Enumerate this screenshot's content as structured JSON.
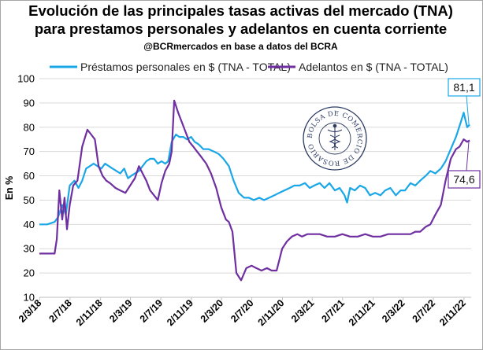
{
  "chart_data": {
    "type": "line",
    "title": "Evolución de las principales tasas activas del mercado (TNA)",
    "title_line2": "para prestamos personales y adelantos en cuenta corriente",
    "subtitle": "@BCRmercados en base a datos del BCRA",
    "ylabel": "En %",
    "ylim": [
      10,
      100
    ],
    "yticks": [
      "10",
      "20",
      "30",
      "40",
      "50",
      "60",
      "70",
      "80",
      "90",
      "100"
    ],
    "xlim": [
      "2018-03-01",
      "2022-12-01"
    ],
    "xticks": [
      {
        "date": "2018-03-02",
        "label": "2/3/18"
      },
      {
        "date": "2018-07-02",
        "label": "2/7/18"
      },
      {
        "date": "2018-11-02",
        "label": "2/11/18"
      },
      {
        "date": "2019-03-02",
        "label": "2/3/19"
      },
      {
        "date": "2019-07-02",
        "label": "2/7/19"
      },
      {
        "date": "2019-11-02",
        "label": "2/11/19"
      },
      {
        "date": "2020-03-02",
        "label": "2/3/20"
      },
      {
        "date": "2020-07-02",
        "label": "2/7/20"
      },
      {
        "date": "2020-11-02",
        "label": "2/11/20"
      },
      {
        "date": "2021-03-02",
        "label": "2/3/21"
      },
      {
        "date": "2021-07-02",
        "label": "2/7/21"
      },
      {
        "date": "2021-11-02",
        "label": "2/11/21"
      },
      {
        "date": "2022-03-02",
        "label": "2/3/22"
      },
      {
        "date": "2022-07-02",
        "label": "2/7/22"
      },
      {
        "date": "2022-11-02",
        "label": "2/11/22"
      }
    ],
    "grid": true,
    "legend": "top",
    "series": [
      {
        "name": "Préstamos personales en $ (TNA - TOTAL)",
        "color": "#1aa7e8",
        "x": [
          "2018-03-01",
          "2018-04-01",
          "2018-05-01",
          "2018-05-15",
          "2018-06-01",
          "2018-06-15",
          "2018-07-01",
          "2018-07-20",
          "2018-08-05",
          "2018-08-20",
          "2018-09-05",
          "2018-09-20",
          "2018-10-05",
          "2018-10-20",
          "2018-11-05",
          "2018-11-20",
          "2018-12-05",
          "2018-12-20",
          "2019-01-05",
          "2019-01-20",
          "2019-02-05",
          "2019-02-20",
          "2019-03-05",
          "2019-03-20",
          "2019-04-05",
          "2019-04-20",
          "2019-05-05",
          "2019-05-20",
          "2019-06-05",
          "2019-06-20",
          "2019-07-05",
          "2019-07-20",
          "2019-08-01",
          "2019-08-15",
          "2019-09-01",
          "2019-09-15",
          "2019-10-01",
          "2019-10-15",
          "2019-11-01",
          "2019-11-15",
          "2019-12-01",
          "2019-12-20",
          "2020-01-10",
          "2020-02-01",
          "2020-02-20",
          "2020-03-10",
          "2020-04-01",
          "2020-04-20",
          "2020-05-10",
          "2020-06-01",
          "2020-06-20",
          "2020-07-10",
          "2020-08-01",
          "2020-08-20",
          "2020-09-10",
          "2020-10-01",
          "2020-10-20",
          "2020-11-10",
          "2020-12-01",
          "2020-12-20",
          "2021-01-10",
          "2021-02-01",
          "2021-02-20",
          "2021-03-10",
          "2021-04-01",
          "2021-04-20",
          "2021-05-10",
          "2021-06-01",
          "2021-06-20",
          "2021-07-10",
          "2021-07-20",
          "2021-08-01",
          "2021-08-20",
          "2021-09-10",
          "2021-10-01",
          "2021-10-20",
          "2021-11-10",
          "2021-12-01",
          "2021-12-20",
          "2022-01-10",
          "2022-02-01",
          "2022-02-20",
          "2022-03-10",
          "2022-04-01",
          "2022-04-20",
          "2022-05-10",
          "2022-06-01",
          "2022-06-20",
          "2022-07-10",
          "2022-08-01",
          "2022-08-20",
          "2022-09-10",
          "2022-10-01",
          "2022-10-20",
          "2022-11-01",
          "2022-11-15",
          "2022-11-25"
        ],
        "y": [
          40,
          40,
          41,
          43,
          48,
          44,
          56,
          58,
          55,
          58,
          63,
          64,
          65,
          64,
          63,
          65,
          64,
          63,
          62,
          61,
          63,
          59,
          60,
          61,
          62,
          64,
          66,
          67,
          67,
          65,
          66,
          65,
          66,
          74,
          77,
          76,
          76,
          75,
          76,
          74,
          73,
          71,
          71,
          70,
          69,
          67,
          64,
          58,
          53,
          51,
          51,
          50,
          51,
          50,
          51,
          52,
          53,
          54,
          55,
          56,
          56,
          57,
          55,
          56,
          57,
          55,
          57,
          54,
          55,
          52,
          49,
          55,
          54,
          56,
          55,
          52,
          53,
          52,
          54,
          55,
          52,
          54,
          54,
          57,
          56,
          58,
          60,
          62,
          61,
          63,
          66,
          71,
          76,
          82,
          86,
          80,
          81.1
        ]
      },
      {
        "name": "Adelantos en $ (TNA - TOTAL)",
        "color": "#6f2fa0",
        "x": [
          "2018-03-01",
          "2018-04-01",
          "2018-05-01",
          "2018-05-10",
          "2018-05-20",
          "2018-06-01",
          "2018-06-10",
          "2018-06-20",
          "2018-07-01",
          "2018-07-15",
          "2018-08-01",
          "2018-08-20",
          "2018-09-10",
          "2018-09-25",
          "2018-10-10",
          "2018-10-25",
          "2018-11-10",
          "2018-11-25",
          "2018-12-10",
          "2019-01-01",
          "2019-01-20",
          "2019-02-10",
          "2019-03-01",
          "2019-03-20",
          "2019-04-05",
          "2019-04-20",
          "2019-05-05",
          "2019-05-20",
          "2019-06-05",
          "2019-06-20",
          "2019-07-05",
          "2019-07-20",
          "2019-08-05",
          "2019-08-15",
          "2019-08-25",
          "2019-09-10",
          "2019-09-25",
          "2019-10-10",
          "2019-10-25",
          "2019-11-10",
          "2019-11-25",
          "2019-12-10",
          "2020-01-01",
          "2020-01-20",
          "2020-02-10",
          "2020-03-01",
          "2020-03-20",
          "2020-04-01",
          "2020-04-15",
          "2020-05-01",
          "2020-05-20",
          "2020-06-10",
          "2020-07-01",
          "2020-07-20",
          "2020-08-10",
          "2020-09-01",
          "2020-09-20",
          "2020-10-10",
          "2020-11-01",
          "2020-11-20",
          "2020-12-10",
          "2021-01-01",
          "2021-01-20",
          "2021-02-10",
          "2021-03-01",
          "2021-04-01",
          "2021-05-01",
          "2021-06-01",
          "2021-07-01",
          "2021-08-01",
          "2021-09-01",
          "2021-10-01",
          "2021-11-01",
          "2021-12-01",
          "2022-01-01",
          "2022-02-01",
          "2022-03-01",
          "2022-04-01",
          "2022-04-20",
          "2022-05-10",
          "2022-06-01",
          "2022-06-20",
          "2022-07-10",
          "2022-08-01",
          "2022-08-20",
          "2022-09-10",
          "2022-10-01",
          "2022-10-15",
          "2022-11-01",
          "2022-11-15",
          "2022-11-25"
        ],
        "y": [
          28,
          28,
          28,
          34,
          54,
          42,
          51,
          38,
          48,
          56,
          58,
          72,
          79,
          77,
          75,
          64,
          60,
          58,
          57,
          55,
          54,
          53,
          56,
          59,
          64,
          61,
          58,
          54,
          52,
          50,
          57,
          62,
          65,
          70,
          91,
          86,
          82,
          78,
          74,
          72,
          70,
          68,
          65,
          61,
          55,
          47,
          42,
          41,
          37,
          20,
          17,
          22,
          23,
          22,
          21,
          22,
          21,
          21,
          30,
          33,
          35,
          36,
          35,
          36,
          36,
          36,
          35,
          35,
          36,
          35,
          35,
          36,
          35,
          35,
          36,
          36,
          36,
          36,
          37,
          37,
          39,
          40,
          44,
          48,
          58,
          67,
          71,
          72,
          75,
          74,
          74.6
        ]
      }
    ],
    "annotations": [
      {
        "text": "81,1",
        "series": "Préstamos personales en $ (TNA - TOTAL)",
        "date": "2022-11-25",
        "value": 81.1
      },
      {
        "text": "74,6",
        "series": "Adelantos en $ (TNA - TOTAL)",
        "date": "2022-11-25",
        "value": 74.6
      }
    ]
  },
  "seal": {
    "text": "BOLSA DE COMERCIO DE ROSARIO",
    "color": "#2c3b63"
  }
}
